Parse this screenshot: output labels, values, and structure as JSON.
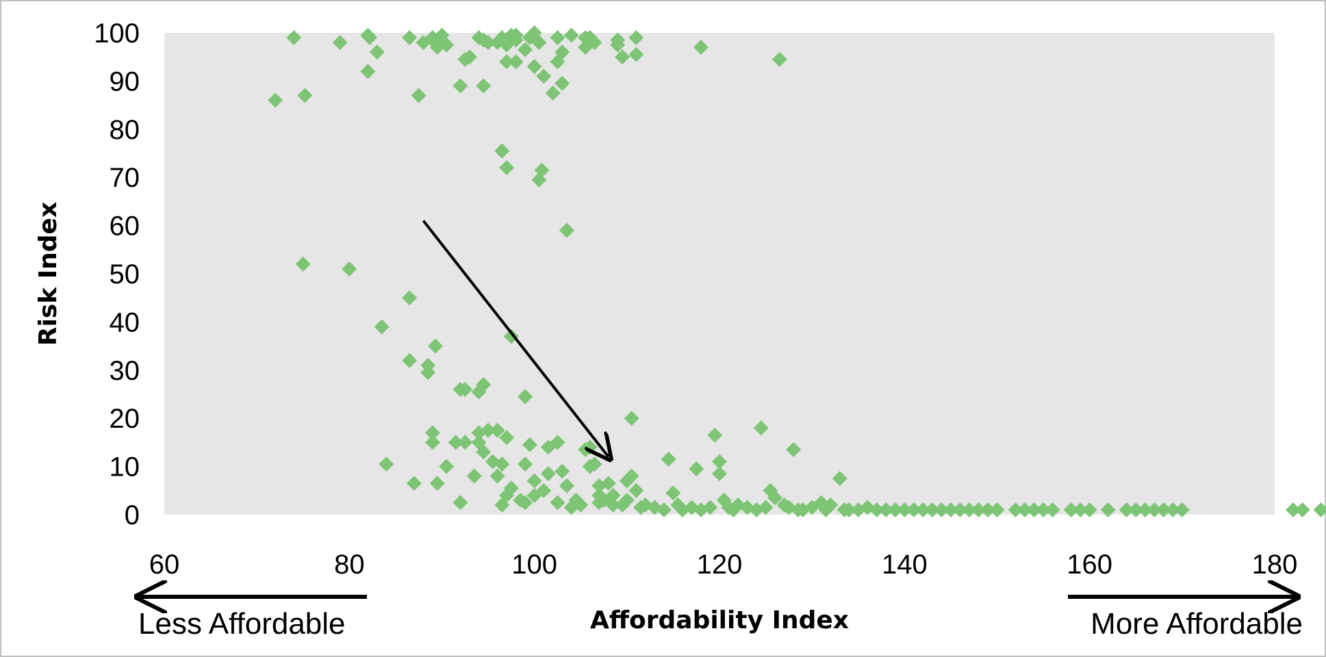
{
  "chart_data": {
    "type": "scatter",
    "title": "",
    "xlabel": "Affordability Index",
    "ylabel": "Risk Index",
    "xlim": [
      60,
      180
    ],
    "ylim": [
      0,
      100
    ],
    "x_ticks": [
      60,
      80,
      100,
      120,
      140,
      160,
      180
    ],
    "y_ticks": [
      0,
      10,
      20,
      30,
      40,
      50,
      60,
      70,
      80,
      90,
      100
    ],
    "grid": false,
    "legend": "none",
    "marker": "diamond",
    "colors": {
      "marker": "#7dc474",
      "plot_bg": "#e6e6e6",
      "arrow": "#000000"
    },
    "annotations": {
      "left_label": "Less Affordable",
      "right_label": "More Affordable",
      "trend_arrow": {
        "from": [
          88,
          61
        ],
        "to": [
          108,
          12
        ]
      }
    },
    "series": [
      {
        "points": [
          [
            72,
            86
          ],
          [
            74,
            99
          ],
          [
            75.2,
            87
          ],
          [
            75,
            52
          ],
          [
            79,
            98
          ],
          [
            80,
            51
          ],
          [
            82,
            99.5
          ],
          [
            82.2,
            99
          ],
          [
            82,
            92
          ],
          [
            83,
            96
          ],
          [
            83.5,
            39
          ],
          [
            84,
            10.5
          ],
          [
            86.5,
            99
          ],
          [
            86.5,
            45
          ],
          [
            86.5,
            32
          ],
          [
            87,
            6.5
          ],
          [
            87.5,
            87
          ],
          [
            88,
            98
          ],
          [
            88.5,
            31
          ],
          [
            88.5,
            29.5
          ],
          [
            89,
            99
          ],
          [
            89,
            98.5
          ],
          [
            89.5,
            97
          ],
          [
            89,
            17
          ],
          [
            89,
            15
          ],
          [
            89.3,
            35
          ],
          [
            89.5,
            6.5
          ],
          [
            90,
            99.5
          ],
          [
            90,
            98
          ],
          [
            90.5,
            97.5
          ],
          [
            90.5,
            10
          ],
          [
            91.5,
            15
          ],
          [
            92,
            89
          ],
          [
            92,
            26
          ],
          [
            92.5,
            94.5
          ],
          [
            92.5,
            26
          ],
          [
            92,
            2.5
          ],
          [
            92.5,
            15
          ],
          [
            93,
            95
          ],
          [
            93.5,
            8
          ],
          [
            94,
            99
          ],
          [
            94,
            25.5
          ],
          [
            94.5,
            98.5
          ],
          [
            94.5,
            89
          ],
          [
            94.5,
            27
          ],
          [
            94,
            17
          ],
          [
            94,
            15
          ],
          [
            94.5,
            13
          ],
          [
            95,
            98
          ],
          [
            95,
            17.5
          ],
          [
            95.5,
            11
          ],
          [
            96,
            98
          ],
          [
            96,
            17.5
          ],
          [
            96,
            8
          ],
          [
            96.5,
            99
          ],
          [
            96.5,
            75.5
          ],
          [
            96.5,
            10.5
          ],
          [
            96.5,
            2
          ],
          [
            97,
            97.5
          ],
          [
            97,
            94
          ],
          [
            97,
            72
          ],
          [
            97,
            16
          ],
          [
            97.5,
            99.5
          ],
          [
            97.5,
            37
          ],
          [
            97,
            4
          ],
          [
            97.5,
            5.5
          ],
          [
            98,
            98.5
          ],
          [
            98,
            94
          ],
          [
            98,
            99.5
          ],
          [
            98.5,
            3
          ],
          [
            99,
            96.5
          ],
          [
            99,
            24.5
          ],
          [
            99,
            10.5
          ],
          [
            99.5,
            99
          ],
          [
            99.5,
            14.5
          ],
          [
            99,
            2.5
          ],
          [
            100,
            100
          ],
          [
            100,
            93
          ],
          [
            100,
            7
          ],
          [
            100,
            4
          ],
          [
            100.5,
            98
          ],
          [
            100.5,
            69.5
          ],
          [
            100.8,
            71.5
          ],
          [
            101,
            91
          ],
          [
            101,
            5
          ],
          [
            101.5,
            14
          ],
          [
            101.5,
            8.5
          ],
          [
            102,
            87.5
          ],
          [
            102.5,
            99
          ],
          [
            102.5,
            94
          ],
          [
            102.5,
            15
          ],
          [
            102.5,
            2.5
          ],
          [
            103,
            96
          ],
          [
            103,
            89.5
          ],
          [
            103,
            9
          ],
          [
            103.5,
            59
          ],
          [
            103.5,
            6
          ],
          [
            104,
            99.5
          ],
          [
            104,
            1.5
          ],
          [
            104.5,
            3
          ],
          [
            105,
            2
          ],
          [
            105.5,
            97
          ],
          [
            105.5,
            99
          ],
          [
            105.5,
            13.5
          ],
          [
            106,
            99
          ],
          [
            106,
            10
          ],
          [
            106,
            14
          ],
          [
            106.5,
            98
          ],
          [
            106.5,
            10.5
          ],
          [
            107,
            4
          ],
          [
            107,
            6
          ],
          [
            107,
            2.5
          ],
          [
            107.5,
            3
          ],
          [
            108,
            6.5
          ],
          [
            108.5,
            2
          ],
          [
            108.5,
            4
          ],
          [
            109,
            98.5
          ],
          [
            109,
            97.5
          ],
          [
            109.5,
            95
          ],
          [
            109.5,
            2
          ],
          [
            110,
            7
          ],
          [
            110,
            3
          ],
          [
            110.5,
            8
          ],
          [
            110.5,
            20
          ],
          [
            111,
            99
          ],
          [
            111,
            95.5
          ],
          [
            111,
            5
          ],
          [
            111.5,
            1.5
          ],
          [
            112,
            2
          ],
          [
            113,
            1.5
          ],
          [
            114,
            1
          ],
          [
            114.5,
            11.5
          ],
          [
            115,
            4.5
          ],
          [
            115.5,
            2
          ],
          [
            116,
            1
          ],
          [
            117,
            1.5
          ],
          [
            117.5,
            9.5
          ],
          [
            118,
            97
          ],
          [
            118,
            1
          ],
          [
            119,
            1.5
          ],
          [
            119.5,
            16.5
          ],
          [
            120,
            11
          ],
          [
            120,
            8.5
          ],
          [
            120.5,
            3
          ],
          [
            121,
            1.5
          ],
          [
            121.5,
            1
          ],
          [
            122,
            2
          ],
          [
            123,
            1.5
          ],
          [
            124,
            1
          ],
          [
            124.5,
            18
          ],
          [
            125,
            1.5
          ],
          [
            125.5,
            5
          ],
          [
            126,
            3.5
          ],
          [
            126.5,
            94.5
          ],
          [
            127,
            2
          ],
          [
            127.5,
            1.5
          ],
          [
            128,
            13.5
          ],
          [
            128.5,
            1
          ],
          [
            129,
            1
          ],
          [
            130,
            1.5
          ],
          [
            131,
            2.5
          ],
          [
            131.5,
            1
          ],
          [
            132,
            2
          ],
          [
            133,
            7.5
          ],
          [
            133.5,
            1
          ],
          [
            134,
            1
          ],
          [
            135,
            1
          ],
          [
            136,
            1.5
          ],
          [
            137,
            1
          ],
          [
            138,
            1
          ],
          [
            139,
            1
          ],
          [
            140,
            1
          ],
          [
            141,
            1
          ],
          [
            142,
            1
          ],
          [
            143,
            1
          ],
          [
            144,
            1
          ],
          [
            145,
            1
          ],
          [
            146,
            1
          ],
          [
            147,
            1
          ],
          [
            148,
            1
          ],
          [
            149,
            1
          ],
          [
            150,
            1
          ],
          [
            152,
            1
          ],
          [
            153,
            1
          ],
          [
            154,
            1
          ],
          [
            155,
            1
          ],
          [
            156,
            1
          ],
          [
            158,
            1
          ],
          [
            159,
            1
          ],
          [
            160,
            1
          ],
          [
            162,
            1
          ],
          [
            164,
            1
          ],
          [
            165,
            1
          ],
          [
            166,
            1
          ],
          [
            167,
            1
          ],
          [
            168,
            1
          ],
          [
            169,
            1
          ],
          [
            170,
            1
          ],
          [
            182,
            1
          ],
          [
            183,
            1
          ],
          [
            185,
            1
          ]
        ]
      }
    ]
  }
}
